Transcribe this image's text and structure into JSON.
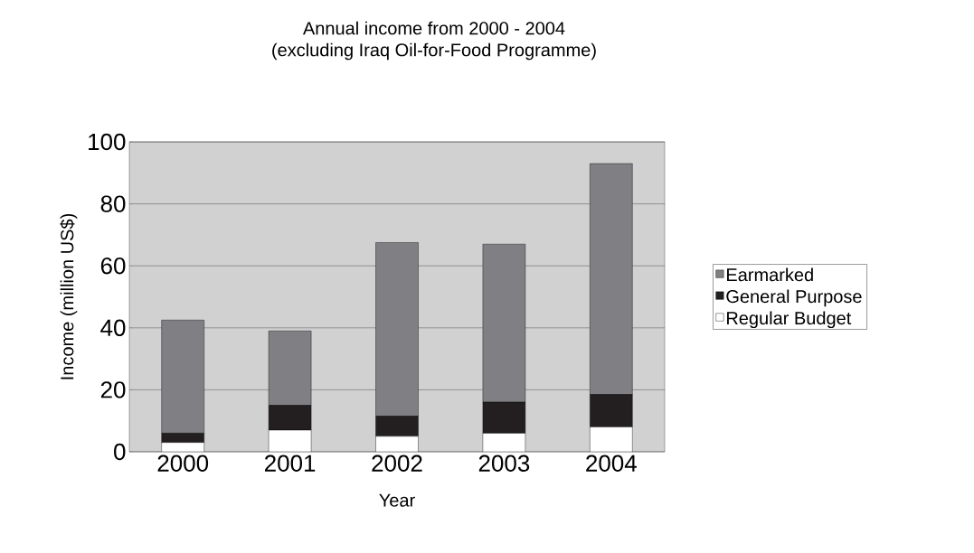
{
  "chart_data": {
    "type": "bar",
    "title": "Annual income from  2000 - 2004",
    "subtitle": "(excluding Iraq Oil-for-Food Programme)",
    "xlabel": "Year",
    "ylabel": "Income (million US$)",
    "categories": [
      "2000",
      "2001",
      "2002",
      "2003",
      "2004"
    ],
    "stacked": true,
    "series": [
      {
        "name": "Regular Budget",
        "color": "#ffffff",
        "values": [
          3,
          7,
          5,
          6,
          8
        ]
      },
      {
        "name": "General Purpose",
        "color": "#231f20",
        "values": [
          3,
          8,
          6.5,
          10,
          10.5
        ]
      },
      {
        "name": "Earmarked",
        "color": "#808084",
        "values": [
          36.5,
          24,
          56,
          51,
          74.5
        ]
      }
    ],
    "ylim": [
      0,
      100
    ],
    "yticks": [
      0,
      20,
      40,
      60,
      80,
      100
    ],
    "grid": "y",
    "legend": "right"
  }
}
